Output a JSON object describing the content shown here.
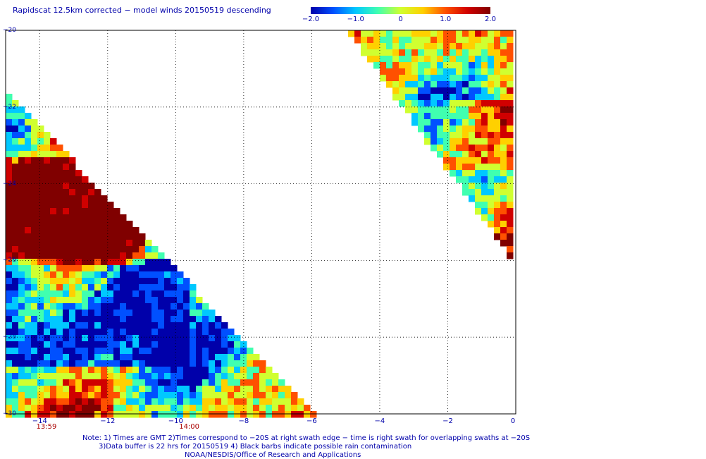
{
  "title": "Rapidscat 12.5km corrected − model winds 20150519 descending",
  "colorbar": {
    "stops": [
      "#0000aa",
      "#0050ff",
      "#00c8ff",
      "#40ffb0",
      "#d0ff30",
      "#ffd000",
      "#ff5000",
      "#d00000",
      "#800000"
    ],
    "labels": [
      {
        "text": "−2.0",
        "value": -2.0
      },
      {
        "text": "−1.0",
        "value": -1.0
      },
      {
        "text": "0",
        "value": 0
      },
      {
        "text": "1.0",
        "value": 1.0
      },
      {
        "text": "2.0",
        "value": 2.0
      }
    ]
  },
  "map": {
    "lon_range": [
      -15,
      0
    ],
    "lat_range": [
      -30,
      -20
    ],
    "x_ticks": [
      {
        "text": "−14",
        "value": -14
      },
      {
        "text": "−12",
        "value": -12
      },
      {
        "text": "−10",
        "value": -10
      },
      {
        "text": "−8",
        "value": -8
      },
      {
        "text": "−6",
        "value": -6
      },
      {
        "text": "−4",
        "value": -4
      },
      {
        "text": "−2",
        "value": -2
      },
      {
        "text": "0",
        "value": 0
      }
    ],
    "y_ticks": [
      {
        "text": "−20",
        "value": -20
      },
      {
        "text": "−22",
        "value": -22
      },
      {
        "text": "−24",
        "value": -24
      },
      {
        "text": "−26",
        "value": -26
      },
      {
        "text": "−28",
        "value": -28
      },
      {
        "text": "−30",
        "value": -30
      }
    ],
    "gridlines": true,
    "time_labels": [
      {
        "text": "13:59",
        "lon": -13.8
      },
      {
        "text": "14:00",
        "lon": -9.6
      }
    ]
  },
  "notes": {
    "line1": "Note: 1) Times are GMT 2)Times correspond to −20S at right swath edge − time is right swath for overlapping swaths at −20S",
    "line2": "3)Data buffer is 22 hrs for 20150519 4) Black barbs indicate possible rain contamination",
    "line3": "NOAA/NESDIS/Office of Research and Applications"
  }
}
